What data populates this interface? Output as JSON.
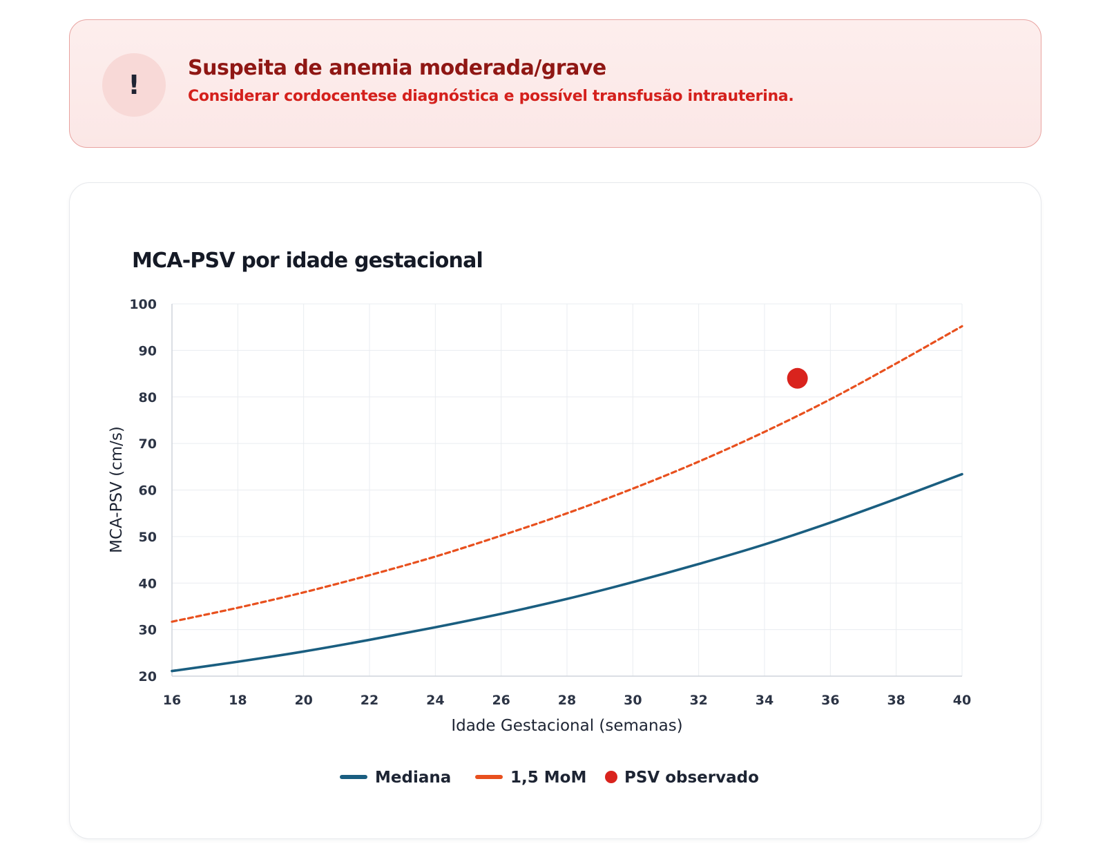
{
  "alert": {
    "icon": "exclamation-icon",
    "icon_glyph": "!",
    "title": "Suspeita de anemia moderada/grave",
    "message": "Considerar cordocentese diagnóstica e possível transfusão intrauterina.",
    "colors": {
      "background": "#fdeeed",
      "border": "#e8a3a0",
      "title": "#8f1714",
      "message": "#d4201c"
    }
  },
  "chart_data": {
    "type": "line",
    "title": "MCA-PSV por idade gestacional",
    "xlabel": "Idade Gestacional (semanas)",
    "ylabel": "MCA-PSV (cm/s)",
    "xlim": [
      16,
      40
    ],
    "ylim": [
      20,
      100
    ],
    "x_ticks": [
      16,
      18,
      20,
      22,
      24,
      26,
      28,
      30,
      32,
      34,
      36,
      38,
      40
    ],
    "y_ticks": [
      20,
      30,
      40,
      50,
      60,
      70,
      80,
      90,
      100
    ],
    "grid": true,
    "legend_position": "bottom-center",
    "series": [
      {
        "name": "Mediana",
        "style": "solid",
        "color": "#1a5e80",
        "x": [
          16,
          18,
          20,
          22,
          24,
          26,
          28,
          30,
          32,
          34,
          36,
          38,
          40
        ],
        "y": [
          21.1,
          23.1,
          25.3,
          27.8,
          30.5,
          33.4,
          36.6,
          40.2,
          44.1,
          48.3,
          53.0,
          58.1,
          63.4
        ]
      },
      {
        "name": "1,5 MoM",
        "style": "dashed",
        "color": "#e8501e",
        "x": [
          16,
          18,
          20,
          22,
          24,
          26,
          28,
          30,
          32,
          34,
          36,
          38,
          40
        ],
        "y": [
          31.7,
          34.7,
          38.0,
          41.7,
          45.7,
          50.2,
          55.0,
          60.3,
          66.1,
          72.5,
          79.5,
          87.2,
          95.2
        ]
      },
      {
        "name": "PSV observado",
        "style": "marker",
        "color": "#d9231d",
        "x": [
          35
        ],
        "y": [
          84
        ]
      }
    ]
  }
}
